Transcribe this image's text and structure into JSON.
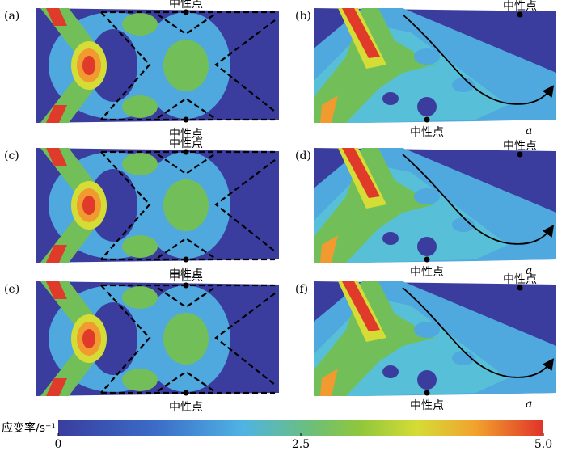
{
  "panels": [
    {
      "label": "(a)",
      "neutral_points": [
        "中性点",
        "中性点"
      ]
    },
    {
      "label": "(b)",
      "neutral_points": [
        "中性点",
        "中性点"
      ],
      "end_label": "a"
    },
    {
      "label": "(c)",
      "neutral_points": [
        "中性点",
        "中性点"
      ]
    },
    {
      "label": "(d)",
      "neutral_points": [
        "中性点",
        "中性点"
      ],
      "end_label": "a"
    },
    {
      "label": "(e)",
      "neutral_points": [
        "中性点",
        "中性点"
      ]
    },
    {
      "label": "(f)",
      "neutral_points": [
        "中性点",
        "中性点"
      ],
      "end_label": "a"
    }
  ],
  "colorbar": {
    "label": "应变率/s⁻¹",
    "range": [
      0,
      5
    ],
    "ticks": [
      0,
      2.5,
      {
        "value": 5,
        "label": "5.0"
      }
    ]
  }
}
